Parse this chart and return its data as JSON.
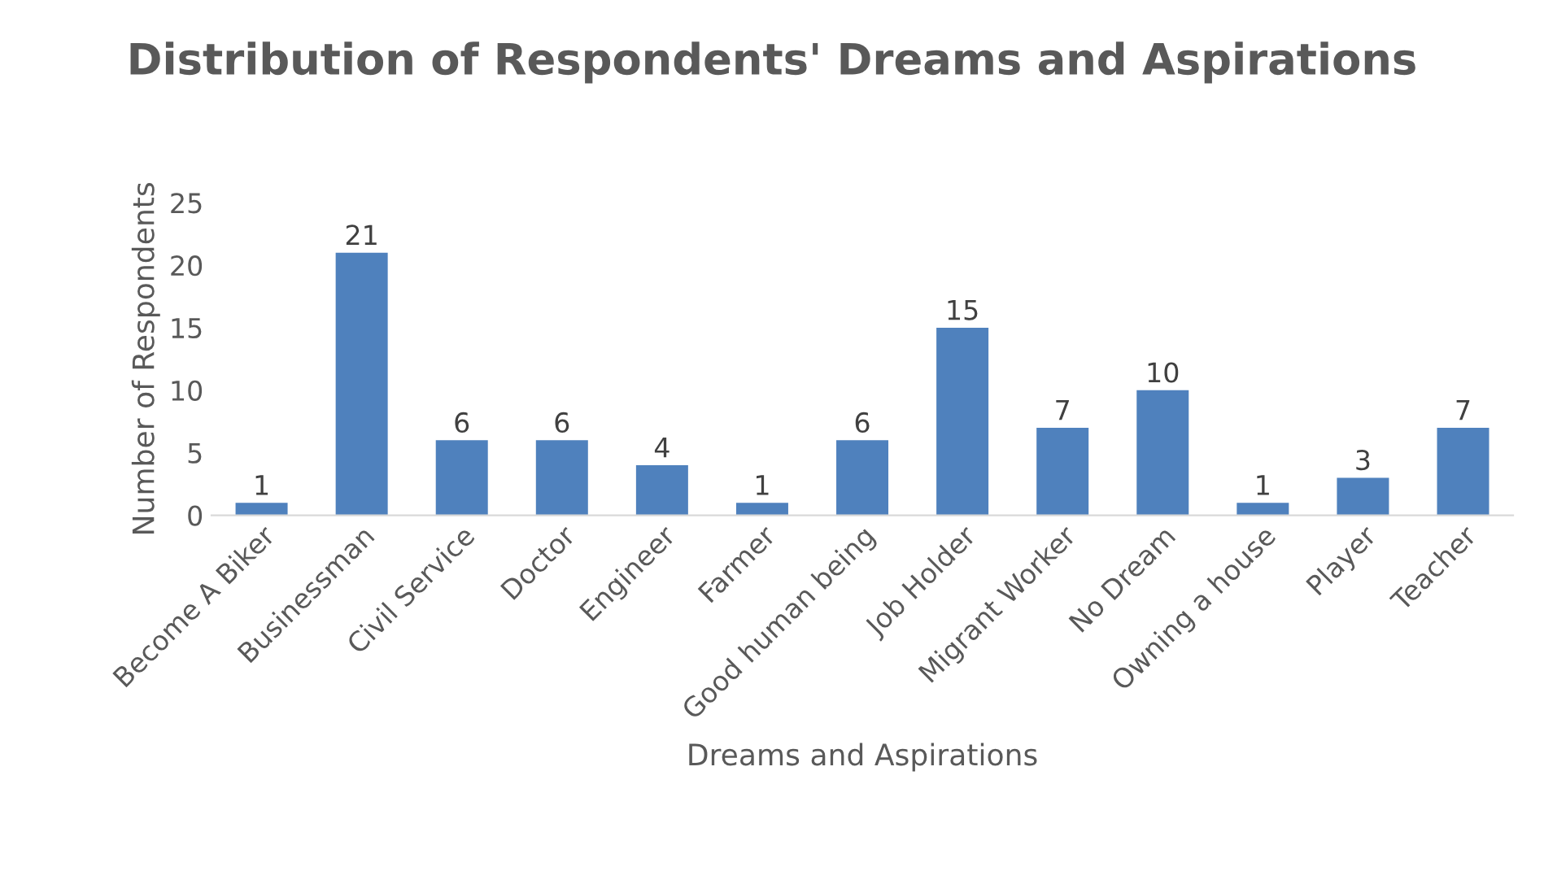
{
  "chart_data": {
    "type": "bar",
    "title": "Distribution of Respondents' Dreams and Aspirations",
    "xlabel": "Dreams and Aspirations",
    "ylabel": "Number of Respondents",
    "categories": [
      "Become A Biker",
      "Businessman",
      "Civil Service",
      "Doctor",
      "Engineer",
      "Farmer",
      "Good human being",
      "Job Holder",
      "Migrant Worker",
      "No Dream",
      "Owning a house",
      "Player",
      "Teacher"
    ],
    "values": [
      1,
      21,
      6,
      6,
      4,
      1,
      6,
      15,
      7,
      10,
      1,
      3,
      7
    ],
    "color": "#4f81bd",
    "ylim": [
      0,
      25
    ],
    "yticks": [
      0,
      5,
      10,
      15,
      20,
      25
    ],
    "grid": false,
    "data_labels": true
  }
}
